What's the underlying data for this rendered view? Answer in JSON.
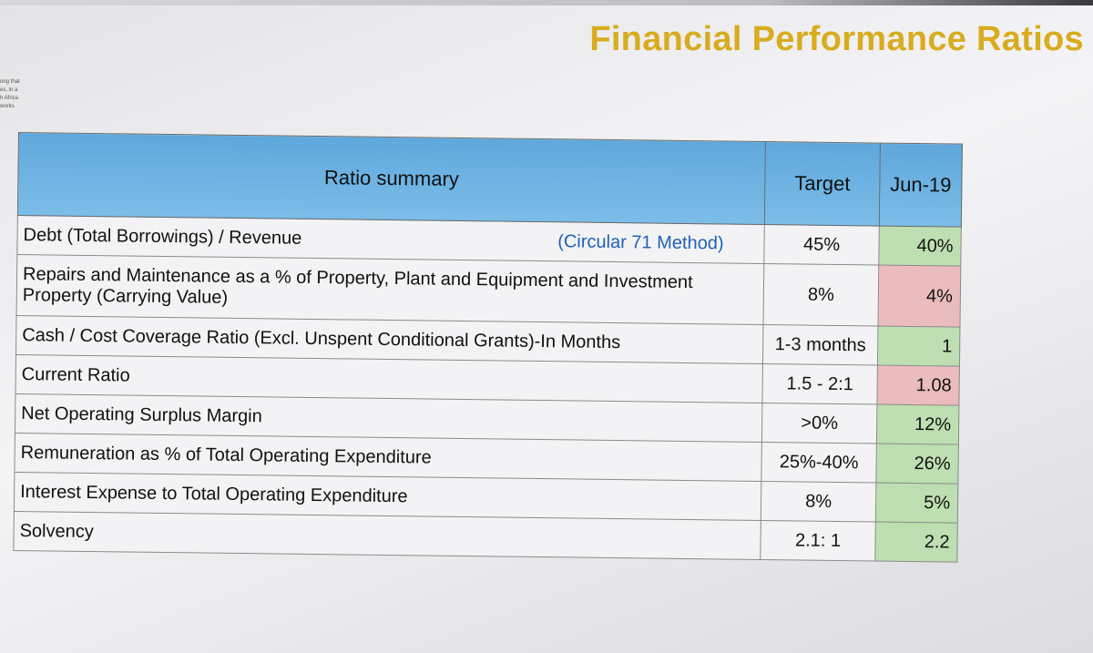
{
  "slide": {
    "title": "Financial Performance Ratios",
    "side_note": [
      "ung that",
      "es, in a",
      "h Africa",
      "works"
    ]
  },
  "table": {
    "headers": {
      "summary": "Ratio summary",
      "target": "Target",
      "period": "Jun-19"
    },
    "rows": [
      {
        "label": "Debt (Total Borrowings) / Revenue",
        "note": "(Circular 71 Method)",
        "target": "45%",
        "value": "40%",
        "status": "good"
      },
      {
        "label": "Repairs and Maintenance as a % of Property, Plant and Equipment and Investment Property (Carrying Value)",
        "target": "8%",
        "value": "4%",
        "status": "bad"
      },
      {
        "label": "Cash / Cost Coverage Ratio (Excl. Unspent Conditional Grants)-In Months",
        "target": "1-3 months",
        "value": "1",
        "status": "good"
      },
      {
        "label": "Current Ratio",
        "target": "1.5 - 2:1",
        "value": "1.08",
        "status": "bad"
      },
      {
        "label": "Net Operating Surplus Margin",
        "target": ">0%",
        "value": "12%",
        "status": "good"
      },
      {
        "label": "Remuneration as % of Total Operating Expenditure",
        "target": "25%-40%",
        "value": "26%",
        "status": "good"
      },
      {
        "label": "Interest Expense to Total Operating Expenditure",
        "target": "8%",
        "value": "5%",
        "status": "good"
      },
      {
        "label": "Solvency",
        "target": "2.1: 1",
        "value": "2.2",
        "status": "good"
      }
    ]
  },
  "colors": {
    "title": "#d9ac1f",
    "header": "#6db3e3",
    "good": "#bedfb1",
    "bad": "#ebbcbd",
    "note": "#2060b8"
  }
}
